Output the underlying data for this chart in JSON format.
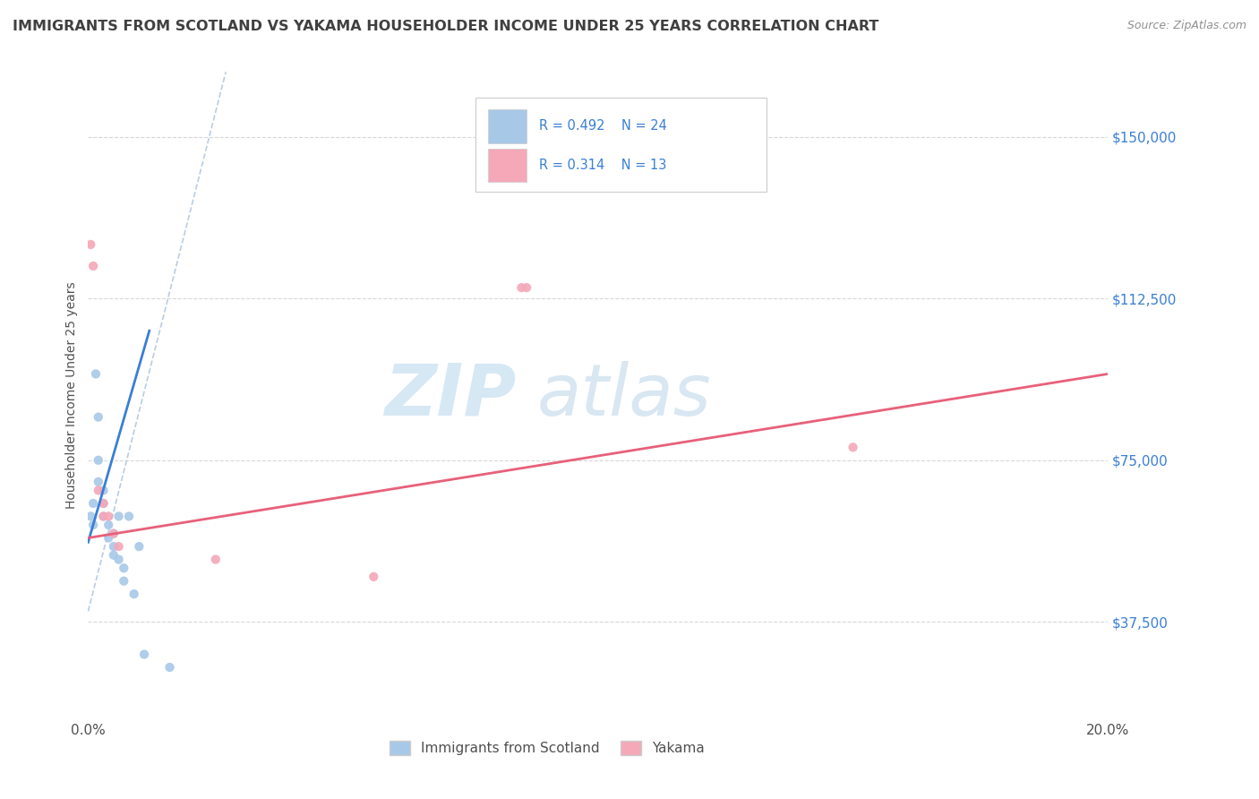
{
  "title": "IMMIGRANTS FROM SCOTLAND VS YAKAMA HOUSEHOLDER INCOME UNDER 25 YEARS CORRELATION CHART",
  "source": "Source: ZipAtlas.com",
  "ylabel": "Householder Income Under 25 years",
  "xlim": [
    0.0,
    0.2
  ],
  "ylim": [
    15000,
    165000
  ],
  "xtick_values": [
    0.0,
    0.05,
    0.1,
    0.15,
    0.2
  ],
  "xticklabels": [
    "0.0%",
    "",
    "",
    "",
    "20.0%"
  ],
  "ytick_values": [
    37500,
    75000,
    112500,
    150000
  ],
  "ytick_labels": [
    "$37,500",
    "$75,000",
    "$112,500",
    "$150,000"
  ],
  "scotland_color": "#a8c8e8",
  "yakama_color": "#f4a8b8",
  "scotland_line_color": "#3a7fd5",
  "yakama_line_color": "#e8607a",
  "diagonal_color": "#b0c8e0",
  "watermark_zip": "ZIP",
  "watermark_atlas": "atlas",
  "legend_text_color": "#3a7fd5",
  "scotland_scatter_x": [
    0.0005,
    0.001,
    0.001,
    0.0015,
    0.002,
    0.002,
    0.002,
    0.003,
    0.003,
    0.003,
    0.004,
    0.004,
    0.005,
    0.005,
    0.005,
    0.006,
    0.006,
    0.007,
    0.007,
    0.008,
    0.009,
    0.01,
    0.011,
    0.016
  ],
  "scotland_scatter_y": [
    62000,
    60000,
    65000,
    95000,
    85000,
    75000,
    70000,
    68000,
    65000,
    62000,
    60000,
    57000,
    58000,
    55000,
    53000,
    52000,
    62000,
    50000,
    47000,
    62000,
    44000,
    55000,
    30000,
    27000
  ],
  "yakama_scatter_x": [
    0.0005,
    0.001,
    0.002,
    0.003,
    0.003,
    0.004,
    0.005,
    0.006,
    0.025,
    0.056,
    0.085,
    0.086,
    0.15
  ],
  "yakama_scatter_y": [
    125000,
    120000,
    68000,
    65000,
    62000,
    62000,
    58000,
    55000,
    52000,
    48000,
    115000,
    115000,
    78000
  ],
  "scotland_trendline_x": [
    0.0,
    0.012
  ],
  "scotland_trendline_y": [
    56000,
    105000
  ],
  "yakama_trendline_x": [
    0.0,
    0.2
  ],
  "yakama_trendline_y": [
    57000,
    95000
  ],
  "background_color": "#ffffff",
  "plot_bg_color": "#ffffff",
  "grid_color": "#d8d8d8",
  "title_color": "#404040",
  "source_color": "#909090"
}
